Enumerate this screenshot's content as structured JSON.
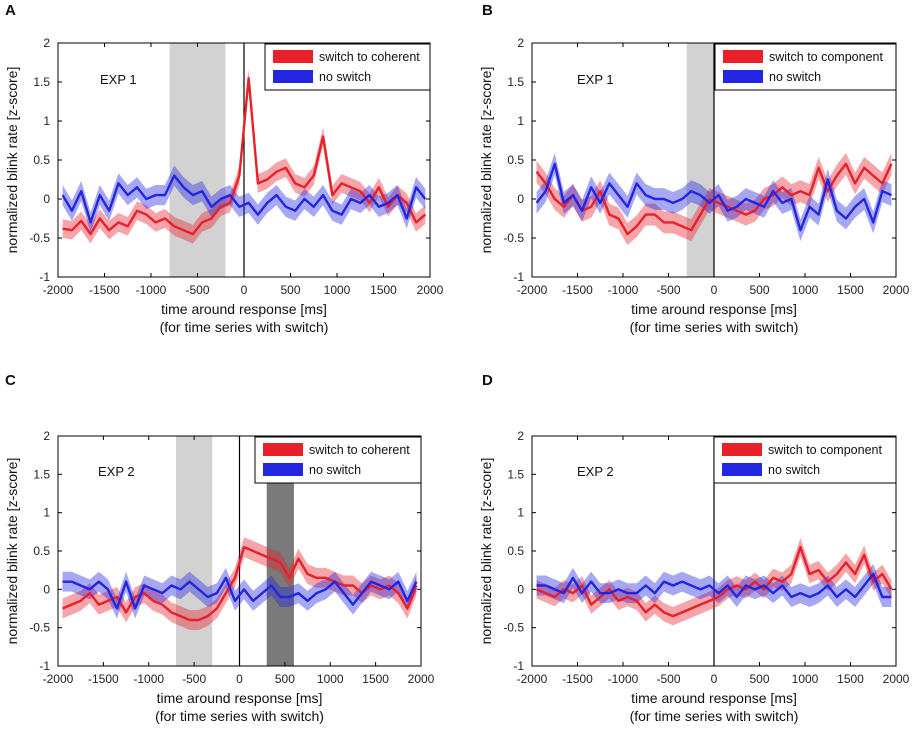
{
  "chart_data": [
    {
      "type": "line",
      "panel": "A",
      "experiment_label": "EXP 1",
      "xlabel": "time around response [ms]",
      "xlabel2": "(for time series with switch)",
      "ylabel": "normalized blink rate [z-score]",
      "xlim": [
        -2000,
        2000
      ],
      "ylim": [
        -1,
        2
      ],
      "xticks": [
        -2000,
        -1500,
        -1000,
        -500,
        0,
        500,
        1000,
        1500,
        2000
      ],
      "yticks": [
        -1,
        -0.5,
        0,
        0.5,
        1,
        1.5,
        2
      ],
      "shaded_regions": [
        {
          "x0": -800,
          "x1": -200,
          "shade": "light"
        }
      ],
      "legend_position": "top-right",
      "series": [
        {
          "name": "switch to coherent",
          "color": "#e8202a",
          "x": [
            -1950,
            -1850,
            -1750,
            -1650,
            -1550,
            -1450,
            -1350,
            -1250,
            -1150,
            -1050,
            -950,
            -850,
            -750,
            -650,
            -550,
            -450,
            -350,
            -250,
            -150,
            -50,
            50,
            150,
            250,
            350,
            450,
            550,
            650,
            750,
            850,
            950,
            1050,
            1150,
            1250,
            1350,
            1450,
            1550,
            1650,
            1750,
            1850,
            1950
          ],
          "values": [
            -0.38,
            -0.4,
            -0.28,
            -0.45,
            -0.25,
            -0.4,
            -0.3,
            -0.35,
            -0.15,
            -0.2,
            -0.3,
            -0.25,
            -0.35,
            -0.4,
            -0.45,
            -0.3,
            -0.25,
            -0.1,
            -0.05,
            0.3,
            1.55,
            0.2,
            0.25,
            0.35,
            0.4,
            0.2,
            0.15,
            0.3,
            0.8,
            0.05,
            0.2,
            0.15,
            0.1,
            -0.05,
            0.15,
            -0.1,
            0.05,
            -0.05,
            -0.3,
            -0.2
          ],
          "band": 0.12
        },
        {
          "name": "no switch",
          "color": "#2326e0",
          "x": [
            -1950,
            -1850,
            -1750,
            -1650,
            -1550,
            -1450,
            -1350,
            -1250,
            -1150,
            -1050,
            -950,
            -850,
            -750,
            -650,
            -550,
            -450,
            -350,
            -250,
            -150,
            -50,
            50,
            150,
            250,
            350,
            450,
            550,
            650,
            750,
            850,
            950,
            1050,
            1150,
            1250,
            1350,
            1450,
            1550,
            1650,
            1750,
            1850,
            1950
          ],
          "values": [
            0.05,
            -0.15,
            0.1,
            -0.3,
            0.05,
            -0.15,
            0.2,
            0.05,
            0.15,
            0.0,
            0.05,
            0.05,
            0.3,
            0.15,
            0.05,
            0.1,
            -0.1,
            0.0,
            0.05,
            -0.1,
            -0.05,
            -0.2,
            -0.05,
            0.05,
            -0.1,
            -0.15,
            0.0,
            -0.1,
            0.05,
            -0.15,
            -0.2,
            0.0,
            -0.05,
            0.05,
            -0.1,
            -0.05,
            0.05,
            -0.25,
            0.15,
            0.0
          ],
          "band": 0.13
        }
      ]
    },
    {
      "type": "line",
      "panel": "B",
      "experiment_label": "EXP 1",
      "xlabel": "time around response [ms]",
      "xlabel2": "(for time series with switch)",
      "ylabel": "normalized blink rate [z-score]",
      "xlim": [
        -2000,
        2000
      ],
      "ylim": [
        -1,
        2
      ],
      "xticks": [
        -2000,
        -1500,
        -1000,
        -500,
        0,
        500,
        1000,
        1500,
        2000
      ],
      "yticks": [
        -1,
        -0.5,
        0,
        0.5,
        1,
        1.5,
        2
      ],
      "shaded_regions": [
        {
          "x0": -300,
          "x1": 0,
          "shade": "light"
        }
      ],
      "legend_position": "top-right",
      "series": [
        {
          "name": "switch to component",
          "color": "#e8202a",
          "x": [
            -1950,
            -1850,
            -1750,
            -1650,
            -1550,
            -1450,
            -1350,
            -1250,
            -1150,
            -1050,
            -950,
            -850,
            -750,
            -650,
            -550,
            -450,
            -350,
            -250,
            -150,
            -50,
            50,
            150,
            250,
            350,
            450,
            550,
            650,
            750,
            850,
            950,
            1050,
            1150,
            1250,
            1350,
            1450,
            1550,
            1650,
            1750,
            1850,
            1950
          ],
          "values": [
            0.35,
            0.2,
            0.0,
            -0.1,
            0.05,
            -0.15,
            -0.1,
            0.1,
            -0.2,
            -0.25,
            -0.45,
            -0.35,
            -0.2,
            -0.2,
            -0.3,
            -0.3,
            -0.35,
            -0.4,
            -0.2,
            0.0,
            -0.05,
            -0.1,
            -0.15,
            -0.2,
            -0.15,
            0.0,
            0.05,
            0.15,
            0.05,
            0.1,
            0.05,
            0.4,
            0.1,
            0.3,
            0.45,
            0.2,
            0.4,
            0.3,
            0.2,
            0.45
          ],
          "band": 0.14
        },
        {
          "name": "no switch",
          "color": "#2326e0",
          "x": [
            -1950,
            -1850,
            -1750,
            -1650,
            -1550,
            -1450,
            -1350,
            -1250,
            -1150,
            -1050,
            -950,
            -850,
            -750,
            -650,
            -550,
            -450,
            -350,
            -250,
            -150,
            -50,
            50,
            150,
            250,
            350,
            450,
            550,
            650,
            750,
            850,
            950,
            1050,
            1150,
            1250,
            1350,
            1450,
            1550,
            1650,
            1750,
            1850,
            1950
          ],
          "values": [
            -0.05,
            0.1,
            0.45,
            -0.05,
            0.05,
            -0.15,
            0.15,
            -0.05,
            0.2,
            0.05,
            -0.1,
            0.2,
            0.05,
            0.0,
            0.0,
            -0.05,
            0.0,
            0.1,
            0.05,
            -0.05,
            0.05,
            -0.15,
            -0.1,
            0.0,
            -0.05,
            -0.1,
            0.1,
            -0.05,
            0.0,
            -0.4,
            -0.1,
            -0.2,
            0.25,
            -0.15,
            -0.25,
            -0.1,
            0.0,
            -0.3,
            0.1,
            0.05
          ],
          "band": 0.14
        }
      ]
    },
    {
      "type": "line",
      "panel": "C",
      "experiment_label": "EXP 2",
      "xlabel": "time around response [ms]",
      "xlabel2": "(for time series with switch)",
      "ylabel": "normalized blink rate [z-score]",
      "xlim": [
        -2000,
        2000
      ],
      "ylim": [
        -1,
        2
      ],
      "xticks": [
        -2000,
        -1500,
        -1000,
        -500,
        0,
        500,
        1000,
        1500,
        2000
      ],
      "yticks": [
        -1,
        -0.5,
        0,
        0.5,
        1,
        1.5,
        2
      ],
      "shaded_regions": [
        {
          "x0": -700,
          "x1": -300,
          "shade": "light"
        },
        {
          "x0": 300,
          "x1": 600,
          "shade": "dark"
        }
      ],
      "legend_position": "top-right",
      "series": [
        {
          "name": "switch to coherent",
          "color": "#e8202a",
          "x": [
            -1950,
            -1850,
            -1750,
            -1650,
            -1550,
            -1450,
            -1350,
            -1250,
            -1150,
            -1050,
            -950,
            -850,
            -750,
            -650,
            -550,
            -450,
            -350,
            -250,
            -150,
            -50,
            50,
            150,
            250,
            350,
            450,
            550,
            650,
            750,
            850,
            950,
            1050,
            1150,
            1250,
            1350,
            1450,
            1550,
            1650,
            1750,
            1850,
            1950
          ],
          "values": [
            -0.25,
            -0.2,
            -0.15,
            -0.05,
            -0.2,
            -0.15,
            -0.1,
            -0.3,
            -0.1,
            -0.05,
            -0.15,
            -0.2,
            -0.3,
            -0.35,
            -0.4,
            -0.4,
            -0.35,
            -0.25,
            -0.05,
            0.15,
            0.55,
            0.5,
            0.45,
            0.4,
            0.35,
            0.15,
            0.4,
            0.2,
            0.15,
            0.15,
            0.1,
            0.05,
            0.05,
            -0.05,
            0.05,
            0.0,
            0.05,
            -0.05,
            -0.25,
            0.05
          ],
          "band": 0.13
        },
        {
          "name": "no switch",
          "color": "#2326e0",
          "x": [
            -1950,
            -1850,
            -1750,
            -1650,
            -1550,
            -1450,
            -1350,
            -1250,
            -1150,
            -1050,
            -950,
            -850,
            -750,
            -650,
            -550,
            -450,
            -350,
            -250,
            -150,
            -50,
            50,
            150,
            250,
            350,
            450,
            550,
            650,
            750,
            850,
            950,
            1050,
            1150,
            1250,
            1350,
            1450,
            1550,
            1650,
            1750,
            1850,
            1950
          ],
          "values": [
            0.1,
            0.1,
            0.05,
            0.0,
            0.1,
            0.0,
            -0.25,
            0.1,
            -0.25,
            0.05,
            0.0,
            -0.05,
            0.05,
            0.0,
            0.1,
            0.0,
            -0.1,
            -0.05,
            0.15,
            -0.15,
            0.0,
            -0.15,
            -0.05,
            0.05,
            -0.1,
            -0.1,
            -0.05,
            -0.15,
            -0.05,
            0.0,
            0.1,
            -0.05,
            -0.2,
            -0.05,
            0.1,
            0.05,
            0.0,
            0.1,
            -0.15,
            0.1
          ],
          "band": 0.13
        }
      ]
    },
    {
      "type": "line",
      "panel": "D",
      "experiment_label": "EXP 2",
      "xlabel": "time around response [ms]",
      "xlabel2": "(for time series with switch)",
      "ylabel": "normalized blink rate [z-score]",
      "xlim": [
        -2000,
        2000
      ],
      "ylim": [
        -1,
        2
      ],
      "xticks": [
        -2000,
        -1500,
        -1000,
        -500,
        0,
        500,
        1000,
        1500,
        2000
      ],
      "yticks": [
        -1,
        -0.5,
        0,
        0.5,
        1,
        1.5,
        2
      ],
      "shaded_regions": [],
      "legend_position": "top-right",
      "series": [
        {
          "name": "switch to component",
          "color": "#e8202a",
          "x": [
            -1950,
            -1850,
            -1750,
            -1650,
            -1550,
            -1450,
            -1350,
            -1250,
            -1150,
            -1050,
            -950,
            -850,
            -750,
            -650,
            -550,
            -450,
            -350,
            -250,
            -150,
            -50,
            50,
            150,
            250,
            350,
            450,
            550,
            650,
            750,
            850,
            950,
            1050,
            1150,
            1250,
            1350,
            1450,
            1550,
            1650,
            1750,
            1850,
            1950
          ],
          "values": [
            0.0,
            -0.05,
            -0.1,
            0.0,
            -0.05,
            0.05,
            -0.2,
            -0.1,
            0.0,
            -0.15,
            -0.1,
            -0.15,
            -0.3,
            -0.2,
            -0.3,
            -0.35,
            -0.3,
            -0.25,
            -0.2,
            -0.15,
            -0.1,
            0.0,
            0.05,
            0.0,
            0.1,
            0.0,
            0.15,
            0.1,
            0.2,
            0.55,
            0.2,
            0.25,
            0.1,
            0.2,
            0.35,
            0.2,
            0.45,
            0.1,
            0.2,
            0.0
          ],
          "band": 0.12
        },
        {
          "name": "no switch",
          "color": "#2326e0",
          "x": [
            -1950,
            -1850,
            -1750,
            -1650,
            -1550,
            -1450,
            -1350,
            -1250,
            -1150,
            -1050,
            -950,
            -850,
            -750,
            -650,
            -550,
            -450,
            -350,
            -250,
            -150,
            -50,
            50,
            150,
            250,
            350,
            450,
            550,
            650,
            750,
            850,
            950,
            1050,
            1150,
            1250,
            1350,
            1450,
            1550,
            1650,
            1750,
            1850,
            1950
          ],
          "values": [
            0.05,
            0.05,
            0.0,
            -0.05,
            0.15,
            -0.05,
            0.1,
            -0.05,
            -0.05,
            0.0,
            -0.05,
            -0.05,
            0.05,
            -0.05,
            0.1,
            0.05,
            0.1,
            0.05,
            0.0,
            0.05,
            -0.05,
            0.05,
            -0.1,
            0.05,
            0.0,
            0.05,
            -0.05,
            0.05,
            -0.1,
            -0.05,
            -0.1,
            -0.05,
            0.05,
            -0.1,
            0.0,
            -0.1,
            0.05,
            0.2,
            -0.1,
            -0.1
          ],
          "band": 0.13
        }
      ]
    }
  ]
}
